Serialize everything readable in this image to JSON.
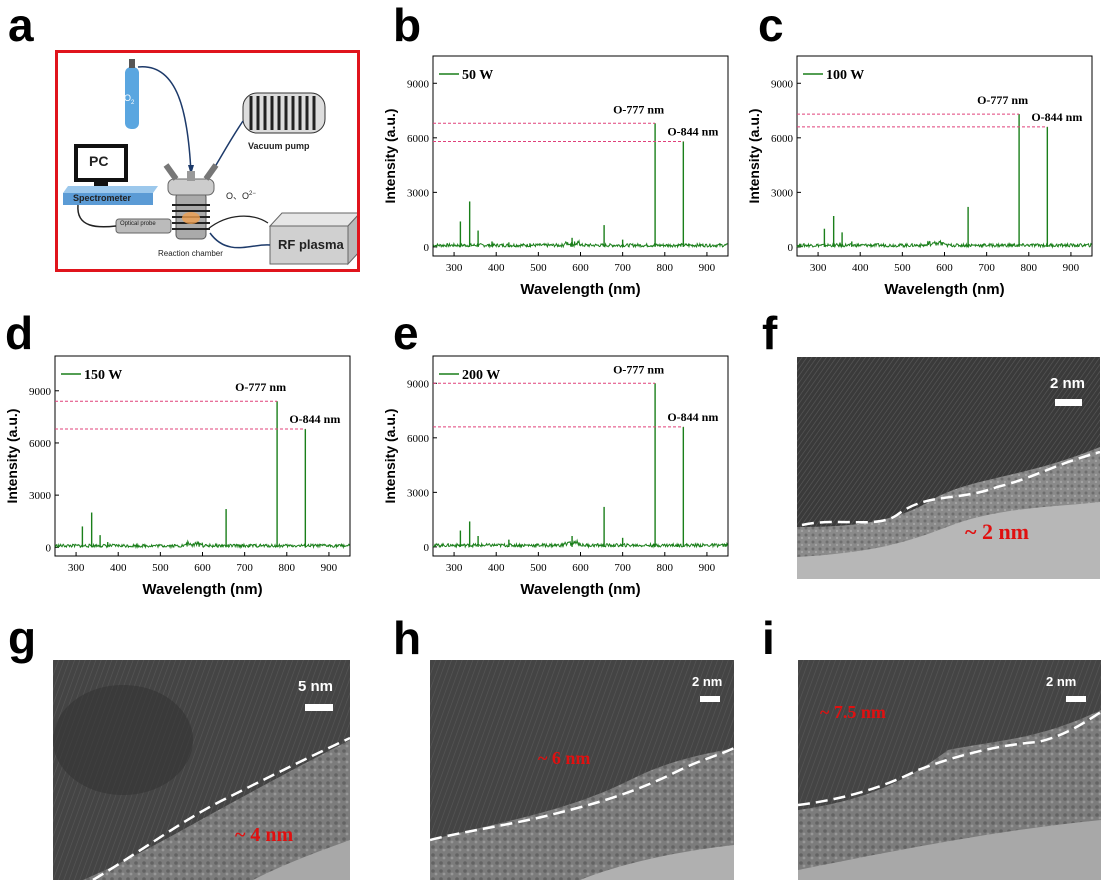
{
  "panels": {
    "a": "a",
    "b": "b",
    "c": "c",
    "d": "d",
    "e": "e",
    "f": "f",
    "g": "g",
    "h": "h",
    "i": "i"
  },
  "schematic": {
    "gas_label": "O",
    "gas_sub": "2",
    "pc_label": "PC",
    "spectrometer_label": "Spectrometer",
    "probe_label": "Optical probe",
    "chamber_label": "Reaction chamber",
    "vacuum_label": "Vacuum pump",
    "species_label": "O、O",
    "species_sup": "2−",
    "rf_label": "RF plasma"
  },
  "chart_data": [
    {
      "panel": "b",
      "type": "line",
      "legend": "50 W",
      "xlabel": "Wavelength (nm)",
      "ylabel": "Intensity (a.u.)",
      "xlim": [
        250,
        950
      ],
      "ylim": [
        -500,
        10500
      ],
      "xticks": [
        "300",
        "400",
        "500",
        "600",
        "700",
        "800",
        "900"
      ],
      "yticks": [
        "0",
        "3000",
        "6000",
        "9000"
      ],
      "peaks": [
        [
          315,
          1400
        ],
        [
          337,
          2500
        ],
        [
          357,
          900
        ],
        [
          390,
          300
        ],
        [
          430,
          250
        ],
        [
          480,
          200
        ],
        [
          580,
          500
        ],
        [
          656,
          1200
        ],
        [
          700,
          400
        ],
        [
          777,
          6800
        ],
        [
          844,
          5800
        ]
      ],
      "annotations": [
        {
          "text": "O-777 nm",
          "wavelength": 777,
          "value": 6800
        },
        {
          "text": "O-844 nm",
          "wavelength": 844,
          "value": 5800
        }
      ]
    },
    {
      "panel": "c",
      "type": "line",
      "legend": "100 W",
      "xlabel": "Wavelength (nm)",
      "ylabel": "Intensity (a.u.)",
      "xlim": [
        250,
        950
      ],
      "ylim": [
        -500,
        10500
      ],
      "xticks": [
        "300",
        "400",
        "500",
        "600",
        "700",
        "800",
        "900"
      ],
      "yticks": [
        "0",
        "3000",
        "6000",
        "9000"
      ],
      "peaks": [
        [
          315,
          1000
        ],
        [
          337,
          1700
        ],
        [
          357,
          800
        ],
        [
          380,
          300
        ],
        [
          656,
          2200
        ],
        [
          777,
          7300
        ],
        [
          844,
          6600
        ]
      ],
      "annotations": [
        {
          "text": "O-777 nm",
          "wavelength": 777,
          "value": 7300
        },
        {
          "text": "O-844 nm",
          "wavelength": 844,
          "value": 6600
        }
      ]
    },
    {
      "panel": "d",
      "type": "line",
      "legend": "150 W",
      "xlabel": "Wavelength (nm)",
      "ylabel": "Intensity (a.u.)",
      "xlim": [
        250,
        950
      ],
      "ylim": [
        -500,
        11000
      ],
      "xticks": [
        "300",
        "400",
        "500",
        "600",
        "700",
        "800",
        "900"
      ],
      "yticks": [
        "0",
        "3000",
        "6000",
        "9000"
      ],
      "peaks": [
        [
          315,
          1200
        ],
        [
          337,
          2000
        ],
        [
          357,
          700
        ],
        [
          375,
          300
        ],
        [
          656,
          2200
        ],
        [
          777,
          8400
        ],
        [
          844,
          6800
        ]
      ],
      "annotations": [
        {
          "text": "O-777 nm",
          "wavelength": 777,
          "value": 8400
        },
        {
          "text": "O-844 nm",
          "wavelength": 844,
          "value": 6800
        }
      ]
    },
    {
      "panel": "e",
      "type": "line",
      "legend": "200 W",
      "xlabel": "Wavelength (nm)",
      "ylabel": "Intensity (a.u.)",
      "xlim": [
        250,
        950
      ],
      "ylim": [
        -500,
        10500
      ],
      "xticks": [
        "300",
        "400",
        "500",
        "600",
        "700",
        "800",
        "900"
      ],
      "yticks": [
        "0",
        "3000",
        "6000",
        "9000"
      ],
      "peaks": [
        [
          315,
          900
        ],
        [
          337,
          1400
        ],
        [
          357,
          600
        ],
        [
          430,
          400
        ],
        [
          580,
          600
        ],
        [
          656,
          2200
        ],
        [
          700,
          500
        ],
        [
          777,
          9000
        ],
        [
          844,
          6600
        ]
      ],
      "annotations": [
        {
          "text": "O-777 nm",
          "wavelength": 777,
          "value": 9000
        },
        {
          "text": "O-844 nm",
          "wavelength": 844,
          "value": 6600
        }
      ]
    }
  ],
  "tem": {
    "f": {
      "scale": "2 nm",
      "thickness": "~ 2 nm"
    },
    "g": {
      "scale": "5 nm",
      "thickness": "~ 4 nm"
    },
    "h": {
      "scale": "2 nm",
      "thickness": "~ 6 nm"
    },
    "i": {
      "scale": "2 nm",
      "thickness": "~ 7.5 nm"
    }
  },
  "colors": {
    "line": "#1a7f1a",
    "dash": "#e0407a",
    "frame": "#e0141c",
    "label": "#e01010"
  }
}
